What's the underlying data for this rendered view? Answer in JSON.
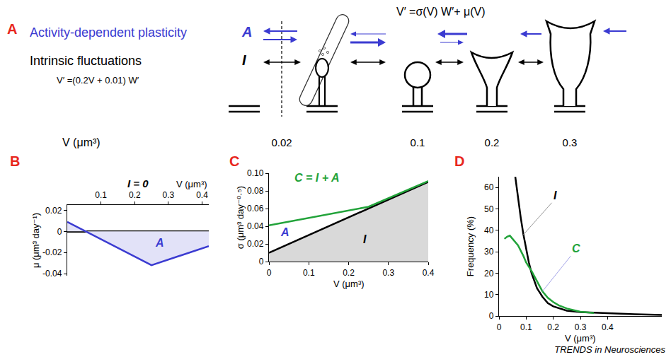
{
  "diagram": {
    "panel_label": "A",
    "equation": "V′ =σ(V) W′+ μ(V)",
    "rows": [
      {
        "label": "Activity-dependent plasticity",
        "symbol": "A",
        "color": "#3b3bd1"
      },
      {
        "label": "Intrinsic fluctuations",
        "symbol": "I",
        "color": "#000000",
        "equation": "V′ =(0.2V + 0.01) W′"
      }
    ],
    "axis_label": "V (μm³)",
    "volumes": [
      0.02,
      0.1,
      0.2,
      0.3
    ]
  },
  "chart_data": [
    {
      "panel_label": "B",
      "type": "line",
      "title": "I = 0",
      "x_label": "V (μm³)",
      "y_label": "μ (μm³ day⁻¹)",
      "xlim": [
        0,
        0.42
      ],
      "ylim": [
        -0.042,
        0.025
      ],
      "xticks": [
        0.1,
        0.2,
        0.3,
        0.4
      ],
      "yticks": [
        -0.04,
        -0.02,
        0,
        0.02
      ],
      "grid": false,
      "series": [
        {
          "name": "A",
          "color": "#3b3bd1",
          "type": "area",
          "x": [
            0,
            0.25,
            0.42
          ],
          "values": [
            0.009,
            -0.032,
            -0.014
          ]
        }
      ]
    },
    {
      "panel_label": "C",
      "type": "line",
      "x_label": "V (μm³)",
      "y_label": "σ (μm³ day⁻⁰·⁵)",
      "xlim": [
        0,
        0.4
      ],
      "ylim": [
        0,
        0.1
      ],
      "xticks": [
        0,
        0.1,
        0.2,
        0.3,
        0.4
      ],
      "yticks": [
        0,
        0.02,
        0.04,
        0.06,
        0.08,
        {
          "value": 0.1,
          "label": "0.10"
        }
      ],
      "grid": false,
      "series": [
        {
          "name": "I",
          "color": "#000000",
          "type": "area",
          "x": [
            0,
            0.4
          ],
          "values": [
            0.01,
            0.09
          ]
        },
        {
          "name": "C = I + A",
          "color": "#22a33a",
          "type": "line",
          "x": [
            0,
            0.25,
            0.4
          ],
          "values": [
            0.041,
            0.062,
            0.091
          ]
        }
      ],
      "annotations": [
        {
          "text": "A",
          "color": "#3b3bd1"
        }
      ]
    },
    {
      "panel_label": "D",
      "type": "line",
      "x_label": "V (μm³)",
      "y_label": "Frequency (%)",
      "xlim": [
        0,
        0.6
      ],
      "ylim": [
        0,
        65
      ],
      "xticks": [
        0,
        0.1,
        0.2,
        0.3,
        0.4
      ],
      "yticks": [
        0,
        10,
        20,
        30,
        40,
        50,
        60
      ],
      "grid": false,
      "series": [
        {
          "name": "I",
          "color": "#000000",
          "type": "line",
          "x": [
            0.06,
            0.07,
            0.08,
            0.09,
            0.1,
            0.11,
            0.12,
            0.14,
            0.16,
            0.18,
            0.2,
            0.25,
            0.3,
            0.4,
            0.5,
            0.6
          ],
          "values": [
            65,
            55,
            46,
            38,
            31,
            25,
            20,
            13,
            9,
            6,
            4.5,
            2.5,
            1.8,
            1.2,
            0.8,
            0.5
          ]
        },
        {
          "name": "C",
          "color": "#22a33a",
          "type": "line",
          "x": [
            0.02,
            0.03,
            0.04,
            0.05,
            0.07,
            0.09,
            0.1,
            0.12,
            0.14,
            0.16,
            0.18,
            0.2,
            0.22,
            0.25,
            0.3,
            0.35
          ],
          "values": [
            36,
            37,
            37.5,
            36,
            33,
            28,
            25,
            21,
            16,
            11.5,
            8.5,
            6.5,
            5,
            3.5,
            2,
            1.4
          ]
        }
      ]
    }
  ],
  "footer": "TRENDS in Neurosciences"
}
